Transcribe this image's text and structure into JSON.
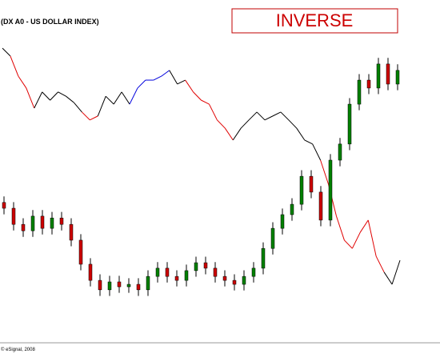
{
  "chart_data": {
    "type": "candlestick",
    "title": "(DX A0 - US DOLLAR INDEX)",
    "annotation": "INVERSE",
    "footer": "© eSignal, 2008",
    "ylim": [
      0,
      100
    ],
    "up_color": "#008000",
    "down_color": "#cc0000",
    "wick_color": "#000000",
    "open": [
      44,
      42.1,
      36.8,
      34.7,
      39.5,
      35.5,
      38.9,
      36.8,
      31.6,
      23.7,
      18.4,
      15.3,
      17.9,
      16.3,
      17.1,
      15.3,
      19.7,
      22.4,
      19.7,
      18.4,
      21.6,
      24.2,
      22.4,
      19.7,
      18.4,
      17.1,
      19.7,
      22.4,
      28.9,
      35.5,
      40,
      43.4,
      52.6,
      47.4,
      38.2,
      57.9,
      63.2,
      76.3,
      84.2,
      81.6,
      89.5,
      82.9
    ],
    "high": [
      46,
      44.1,
      38.8,
      41.5,
      41.5,
      40.9,
      40.9,
      38.8,
      33.6,
      25.7,
      20.4,
      19.9,
      19.9,
      19.1,
      19.1,
      21.7,
      24.4,
      24.4,
      21.7,
      23.6,
      26.2,
      26.2,
      24.4,
      21.7,
      20.4,
      21.7,
      24.4,
      30.9,
      37.5,
      42,
      45.4,
      54.6,
      54.6,
      49.4,
      59.9,
      65.2,
      78.3,
      86.2,
      86.2,
      91.5,
      91.5,
      89.4
    ],
    "low": [
      40.1,
      34.8,
      32.7,
      32.7,
      33.5,
      33.5,
      34.8,
      29.6,
      21.7,
      16.4,
      13.3,
      13.3,
      14.3,
      14.3,
      13.3,
      13.3,
      17.7,
      17.7,
      16.4,
      16.4,
      19.6,
      20.4,
      17.7,
      16.4,
      15.1,
      15.1,
      17.7,
      20.4,
      26.9,
      33.5,
      38,
      41.4,
      45.4,
      36.2,
      36.2,
      55.9,
      61.2,
      74.3,
      79.6,
      79.6,
      80.9,
      80.9
    ],
    "close": [
      42.1,
      36.8,
      34.7,
      39.5,
      35.5,
      38.9,
      36.8,
      31.6,
      23.7,
      18.4,
      15.3,
      17.9,
      16.3,
      17.1,
      15.3,
      19.7,
      22.4,
      19.7,
      18.4,
      21.6,
      24.2,
      22.4,
      19.7,
      18.4,
      17.1,
      19.7,
      22.4,
      28.9,
      35.5,
      40,
      43.4,
      52.6,
      47.4,
      38.2,
      57.9,
      63.2,
      76.3,
      84.2,
      81.6,
      89.5,
      82.9,
      87.4
    ],
    "inverse_line": {
      "values": [
        94.7,
        92.1,
        85.5,
        81.6,
        75,
        80.3,
        77.6,
        80.3,
        78.9,
        76.8,
        73.7,
        71.1,
        72.4,
        78.9,
        76.3,
        80.3,
        76.3,
        81.6,
        84.2,
        84.2,
        85.5,
        87.4,
        82.9,
        84.2,
        80.3,
        77.6,
        76.3,
        71.1,
        68.4,
        64.5,
        68.4,
        71.1,
        73.7,
        71.1,
        72.4,
        73.7,
        71.1,
        68.4,
        64.5,
        63.2,
        57.9,
        50,
        39.5,
        31.6,
        28.9,
        34.2,
        38.2,
        26.3,
        21.1,
        17.1,
        25
      ],
      "colors": [
        "#000000",
        "#000000",
        "#e00000",
        "#e00000",
        "#e00000",
        "#000000",
        "#000000",
        "#000000",
        "#000000",
        "#000000",
        "#000000",
        "#e00000",
        "#e00000",
        "#000000",
        "#000000",
        "#000000",
        "#000000",
        "#0000dd",
        "#0000dd",
        "#0000dd",
        "#0000dd",
        "#0000dd",
        "#000000",
        "#000000",
        "#e00000",
        "#e00000",
        "#e00000",
        "#e00000",
        "#e00000",
        "#e00000",
        "#000000",
        "#000000",
        "#000000",
        "#000000",
        "#000000",
        "#000000",
        "#000000",
        "#000000",
        "#000000",
        "#000000",
        "#000000",
        "#e00000",
        "#e00000",
        "#e00000",
        "#e00000",
        "#e00000",
        "#e00000",
        "#e00000",
        "#e00000",
        "#000000",
        "#000000"
      ]
    }
  }
}
